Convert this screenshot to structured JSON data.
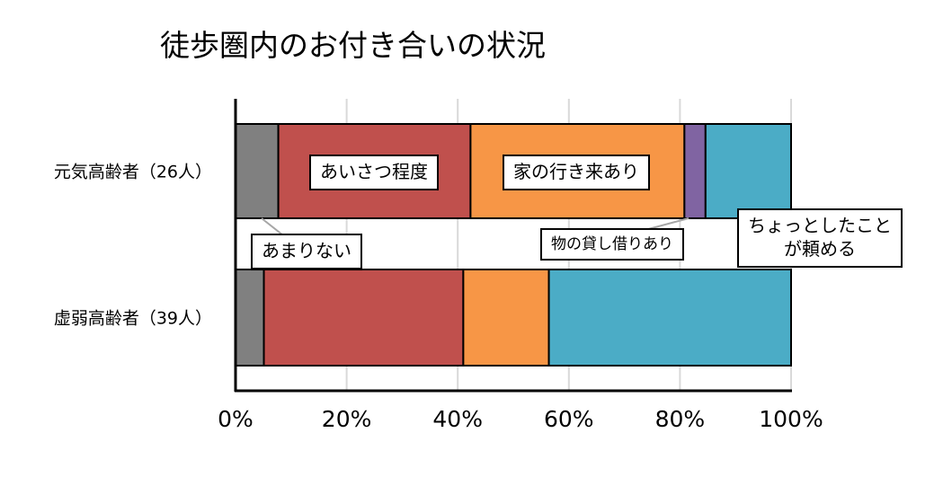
{
  "chart_data": {
    "type": "bar",
    "orientation": "horizontal",
    "stacked": "percent",
    "title": "徒歩圏内のお付き合いの状況",
    "categories": [
      "元気高齢者（26人）",
      "虚弱高齢者（39人）"
    ],
    "series": [
      {
        "name": "あまりない",
        "color": "#808080",
        "values": [
          7.7,
          5.1
        ]
      },
      {
        "name": "あいさつ程度",
        "color": "#C0504D",
        "values": [
          34.6,
          35.9
        ]
      },
      {
        "name": "家の行き来あり",
        "color": "#F79646",
        "values": [
          38.5,
          15.4
        ]
      },
      {
        "name": "物の貸し借りあり",
        "color": "#8064A2",
        "values": [
          3.8,
          0
        ]
      },
      {
        "name": "ちょっとしたことが頼める",
        "color": "#4BACC6",
        "values": [
          15.4,
          43.6
        ]
      }
    ],
    "series_label_lines": {
      "ちょっとしたことが頼める": [
        "ちょっとしたこと",
        "が頼める"
      ]
    },
    "xlim": [
      0,
      100
    ],
    "xticks": [
      "0%",
      "20%",
      "40%",
      "60%",
      "80%",
      "100%"
    ],
    "grid": true,
    "xlabel": "",
    "ylabel": ""
  }
}
